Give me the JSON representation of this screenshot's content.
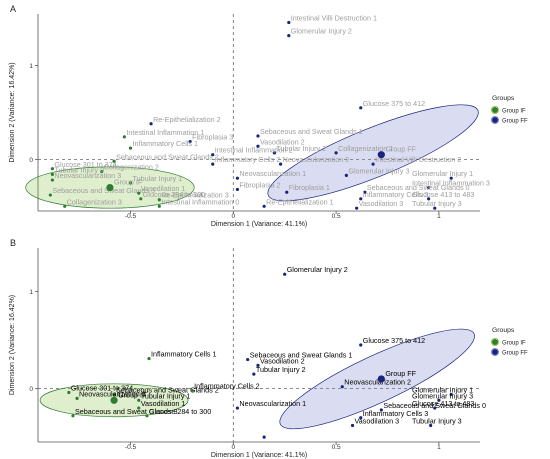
{
  "chart_data": [
    {
      "type": "scatter",
      "panel_label": "A",
      "xlabel": "Dimension 1 (Variance: 41.1%)",
      "ylabel": "Dimension 2 (Variance: 16.42%)",
      "xlim": [
        -0.95,
        1.2
      ],
      "ylim": [
        -0.55,
        1.55
      ],
      "x_ticks": [
        -0.5,
        0,
        0.5,
        1
      ],
      "y_ticks": [
        0,
        1
      ],
      "grid": false,
      "legend": {
        "title": "Groups",
        "position": "right",
        "entries": [
          "Group IF",
          "Group FF"
        ]
      },
      "colors": {
        "group_if": "#2e7d32",
        "group_ff": "#1a237e",
        "ellipse_if": "#8bc34a",
        "ellipse_ff": "#7986cb",
        "label": "#9e9e9e"
      },
      "ellipses": [
        {
          "group": "Group IF",
          "cx": -0.6,
          "cy": -0.3,
          "rx": 0.41,
          "ry": 0.22,
          "angle_deg": 0
        },
        {
          "group": "Group FF",
          "cx": 0.68,
          "cy": 0.07,
          "rx": 0.55,
          "ry": 0.26,
          "angle_deg": 22
        }
      ],
      "centroids": [
        {
          "group": "Group IF",
          "label": "Group IF",
          "x": -0.6,
          "y": -0.3
        },
        {
          "group": "Group FF",
          "label": "Group FF",
          "x": 0.72,
          "y": 0.05
        }
      ],
      "points": [
        {
          "label": "Intestinal Villi Destruction 1",
          "x": 0.27,
          "y": 1.46,
          "group": "Group FF"
        },
        {
          "label": "Glomerular Injury 2",
          "x": 0.27,
          "y": 1.32,
          "group": "Group FF"
        },
        {
          "label": "Glucose 375 to 412",
          "x": 0.62,
          "y": 0.55,
          "group": "Group FF"
        },
        {
          "label": "Re-Epithelialization 2",
          "x": -0.4,
          "y": 0.38,
          "group": "Group FF"
        },
        {
          "label": "Sebaceous and Sweat Glands 1",
          "x": 0.12,
          "y": 0.25,
          "group": "Group FF"
        },
        {
          "label": "Vasodilation 2",
          "x": 0.12,
          "y": 0.14,
          "group": "Group FF"
        },
        {
          "label": "Fibroplasia 3",
          "x": -0.21,
          "y": 0.19,
          "group": "Group FF"
        },
        {
          "label": "Intestinal Inflammation 1",
          "x": -0.53,
          "y": 0.24,
          "group": "Group IF"
        },
        {
          "label": "Inflammatory Cells 1",
          "x": -0.5,
          "y": 0.12,
          "group": "Group IF"
        },
        {
          "label": "Sebaceous and Sweat Glands 2",
          "x": -0.58,
          "y": -0.02,
          "group": "Group IF"
        },
        {
          "label": "Tubular Injury 2",
          "x": 0.2,
          "y": 0.07,
          "group": "Group FF"
        },
        {
          "label": "Collagenization 1",
          "x": 0.5,
          "y": 0.07,
          "group": "Group FF"
        },
        {
          "label": "Intestinal Inflammation 2",
          "x": -0.1,
          "y": 0.05,
          "group": "Group FF"
        },
        {
          "label": "Inflammatory Cells 2",
          "x": -0.1,
          "y": -0.05,
          "group": "Group FF"
        },
        {
          "label": "Collagenization 2",
          "x": -0.64,
          "y": -0.13,
          "group": "Group IF"
        },
        {
          "label": "Intestinal Villi Destruction 2",
          "x": 0.68,
          "y": -0.05,
          "group": "Group FF"
        },
        {
          "label": "Glucose 301 to 374",
          "x": -0.88,
          "y": -0.1,
          "group": "Group IF"
        },
        {
          "label": "Tubular Injury 0",
          "x": -0.88,
          "y": -0.16,
          "group": "Group IF"
        },
        {
          "label": "Neovascularization 3",
          "x": -0.88,
          "y": -0.22,
          "group": "Group IF"
        },
        {
          "label": "Tubular Injury 1",
          "x": -0.5,
          "y": -0.25,
          "group": "Group IF"
        },
        {
          "label": "Neovascularization 2",
          "x": 0.23,
          "y": -0.05,
          "group": "Group FF"
        },
        {
          "label": "Neovascularization 1",
          "x": 0.02,
          "y": -0.2,
          "group": "Group FF"
        },
        {
          "label": "Glomerular Injury 3",
          "x": 0.55,
          "y": -0.17,
          "group": "Group FF"
        },
        {
          "label": "Glomerular Injury 1",
          "x": 1.06,
          "y": -0.2,
          "group": "Group FF"
        },
        {
          "label": "Intestinal Inflammation 3",
          "x": 0.95,
          "y": -0.3,
          "group": "Group FF"
        },
        {
          "label": "Sebaceous and Sweat Glands 3",
          "x": -0.89,
          "y": -0.38,
          "group": "Group IF"
        },
        {
          "label": "Vasodilation 1",
          "x": -0.46,
          "y": -0.36,
          "group": "Group IF"
        },
        {
          "label": "Glucose 284 to 300",
          "x": -0.45,
          "y": -0.42,
          "group": "Group IF"
        },
        {
          "label": "Fibroplasia 2",
          "x": 0.02,
          "y": -0.32,
          "group": "Group FF"
        },
        {
          "label": "Fibroplasia 1",
          "x": 0.26,
          "y": -0.35,
          "group": "Group FF"
        },
        {
          "label": "Sebaceous and Sweat Glands 0",
          "x": 0.64,
          "y": -0.35,
          "group": "Group FF"
        },
        {
          "label": "Re-Epithelialization 3",
          "x": -0.36,
          "y": -0.43,
          "group": "Group IF"
        },
        {
          "label": "Inflammatory Cells 3",
          "x": 0.62,
          "y": -0.42,
          "group": "Group FF"
        },
        {
          "label": "Glucose 413 to 483",
          "x": 0.95,
          "y": -0.42,
          "group": "Group FF"
        },
        {
          "label": "Re-Epithelialization 1",
          "x": 0.15,
          "y": -0.5,
          "group": "Group FF"
        },
        {
          "label": "Collagenization 3",
          "x": -0.82,
          "y": -0.5,
          "group": "Group IF"
        },
        {
          "label": "Intestinal Inflammation 0",
          "x": -0.36,
          "y": -0.5,
          "group": "Group IF"
        },
        {
          "label": "Vasodilation 3",
          "x": 0.6,
          "y": -0.52,
          "group": "Group FF"
        },
        {
          "label": "Tubular Injury 3",
          "x": 0.98,
          "y": -0.52,
          "group": "Group FF"
        }
      ]
    },
    {
      "type": "scatter",
      "panel_label": "B",
      "xlabel": "Dimension 1 (Variance: 41.1%)",
      "ylabel": "Dimension 2 (Variance: 16.42%)",
      "xlim": [
        -0.95,
        1.2
      ],
      "ylim": [
        -0.55,
        1.45
      ],
      "x_ticks": [
        -0.5,
        0,
        0.5,
        1
      ],
      "y_ticks": [
        0,
        1
      ],
      "grid": false,
      "legend": {
        "title": "Groups",
        "position": "right",
        "entries": [
          "Group IF",
          "Group FF"
        ]
      },
      "colors": {
        "group_if": "#2e7d32",
        "group_ff": "#1a237e",
        "ellipse_if": "#8bc34a",
        "ellipse_ff": "#7986cb",
        "label": "#000000"
      },
      "ellipses": [
        {
          "group": "Group IF",
          "cx": -0.58,
          "cy": -0.12,
          "rx": 0.36,
          "ry": 0.17,
          "angle_deg": 0
        },
        {
          "group": "Group FF",
          "cx": 0.7,
          "cy": 0.1,
          "rx": 0.52,
          "ry": 0.24,
          "angle_deg": 25
        }
      ],
      "centroids": [
        {
          "group": "Group IF",
          "label": "Group IF",
          "x": -0.58,
          "y": -0.12
        },
        {
          "group": "Group FF",
          "label": "Group FF",
          "x": 0.72,
          "y": 0.1
        }
      ],
      "points": [
        {
          "label": "Glomerular Injury 2",
          "x": 0.25,
          "y": 1.18,
          "group": "Group FF"
        },
        {
          "label": "Glucose 375 to 412",
          "x": 0.62,
          "y": 0.45,
          "group": "Group FF"
        },
        {
          "label": "Inflammatory Cells 1",
          "x": -0.41,
          "y": 0.31,
          "group": "Group IF"
        },
        {
          "label": "Sebaceous and Sweat Glands 1",
          "x": 0.07,
          "y": 0.3,
          "group": "Group FF"
        },
        {
          "label": "Vasodilation 2",
          "x": 0.12,
          "y": 0.24,
          "group": "Group FF"
        },
        {
          "label": "Tubular Injury 2",
          "x": 0.1,
          "y": 0.15,
          "group": "Group FF"
        },
        {
          "label": "Glucose 301 to 374",
          "x": -0.8,
          "y": -0.04,
          "group": "Group IF"
        },
        {
          "label": "Sebaceous and Sweat Glands 2",
          "x": -0.58,
          "y": -0.06,
          "group": "Group IF"
        },
        {
          "label": "Neovascularization 2",
          "x": 0.53,
          "y": 0.02,
          "group": "Group FF"
        },
        {
          "label": "Inflammatory Cells 2",
          "x": -0.2,
          "y": -0.02,
          "group": "Group IF"
        },
        {
          "label": "Neovascularization 3",
          "x": -0.76,
          "y": -0.1,
          "group": "Group IF"
        },
        {
          "label": "Tubular Injury 1",
          "x": -0.46,
          "y": -0.12,
          "group": "Group IF"
        },
        {
          "label": "Vasodilation 1",
          "x": -0.46,
          "y": -0.2,
          "group": "Group IF"
        },
        {
          "label": "Neovascularization 1",
          "x": 0.02,
          "y": -0.2,
          "group": "Group FF"
        },
        {
          "label": "Glomerular Injury 1",
          "x": 1.06,
          "y": -0.06,
          "group": "Group FF"
        },
        {
          "label": "Glomerular Injury 3",
          "x": 1.0,
          "y": -0.12,
          "group": "Group FF"
        },
        {
          "label": "Sebaceous and Sweat Glands 0",
          "x": 0.72,
          "y": -0.22,
          "group": "Group FF"
        },
        {
          "label": "Glucose 413 to 483",
          "x": 0.98,
          "y": -0.2,
          "group": "Group FF"
        },
        {
          "label": "Sebaceous and Sweat Glands 3",
          "x": -0.78,
          "y": -0.28,
          "group": "Group IF"
        },
        {
          "label": "Glucose 284 to 300",
          "x": -0.42,
          "y": -0.28,
          "group": "Group IF"
        },
        {
          "label": "Inflammatory Cells 3",
          "x": 0.62,
          "y": -0.3,
          "group": "Group FF"
        },
        {
          "label": "Vasodilation 3",
          "x": 0.58,
          "y": -0.38,
          "group": "Group FF"
        },
        {
          "label": "Tubular Injury 3",
          "x": 0.96,
          "y": -0.38,
          "group": "Group FF"
        },
        {
          "label": "",
          "x": 0.15,
          "y": -0.5,
          "group": "Group FF"
        }
      ]
    }
  ]
}
